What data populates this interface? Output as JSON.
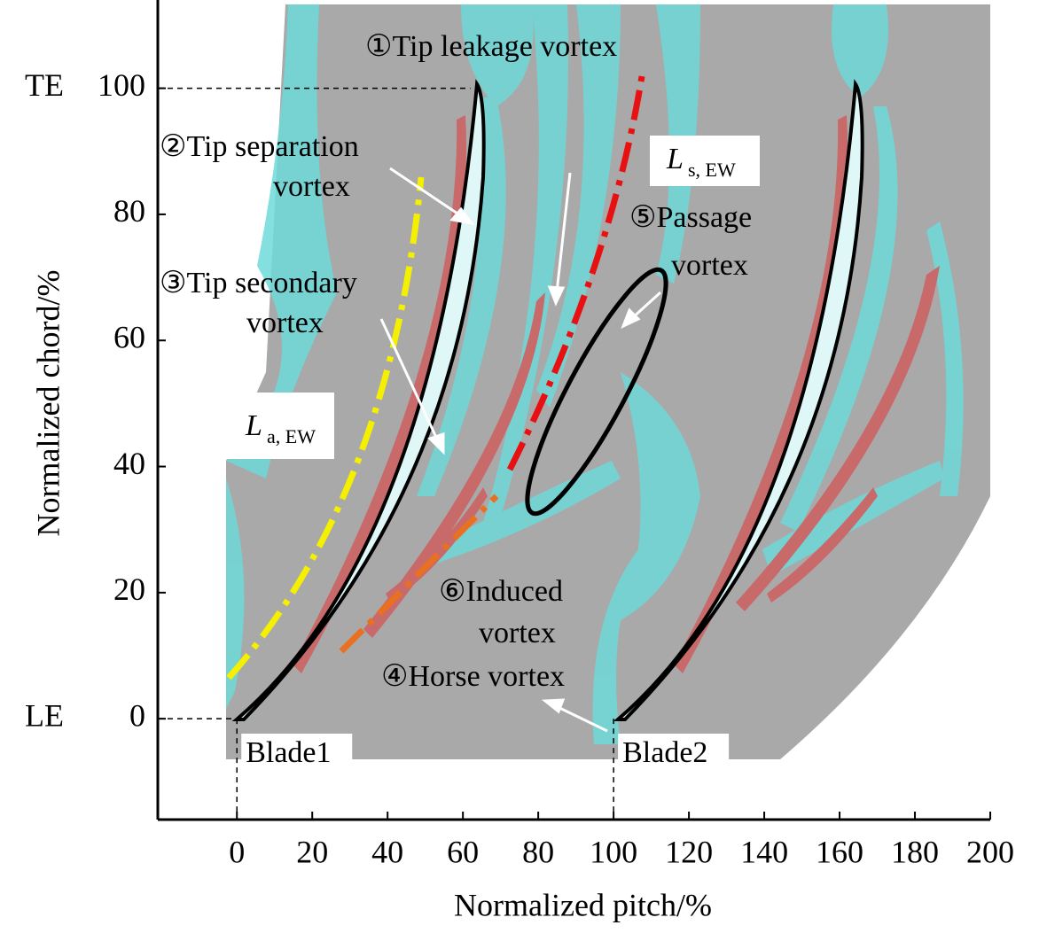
{
  "chart_data": {
    "type": "flow-visualization",
    "xlabel": "Normalized pitch/%",
    "ylabel": "Normalized chord/%",
    "xlim": [
      -21,
      200
    ],
    "ylim": [
      -16,
      114
    ],
    "xticks": [
      0,
      20,
      40,
      60,
      80,
      100,
      120,
      140,
      160,
      180,
      200
    ],
    "yticks": [
      0,
      20,
      40,
      60,
      80,
      100
    ],
    "reference_lines": [
      {
        "label": "TE",
        "y": 100,
        "x": 62
      },
      {
        "label": "LE",
        "y": 0,
        "x": 0
      }
    ],
    "blade_labels": [
      {
        "label": "Blade1",
        "x": 0
      },
      {
        "label": "Blade2",
        "x": 100
      }
    ],
    "annotations": [
      {
        "lines": [
          "①Tip leakage vortex"
        ]
      },
      {
        "lines": [
          "②Tip separation",
          "vortex"
        ]
      },
      {
        "lines": [
          "③Tip secondary",
          "vortex"
        ]
      },
      {
        "lines": [
          "⑤Passage",
          "vortex"
        ]
      },
      {
        "lines": [
          "⑥Induced",
          "vortex"
        ]
      },
      {
        "lines": [
          "④Horse vortex"
        ]
      }
    ],
    "line_labels": [
      {
        "symbol": "L",
        "subscript": "a, EW"
      },
      {
        "symbol": "L",
        "subscript": "s, EW"
      }
    ]
  }
}
